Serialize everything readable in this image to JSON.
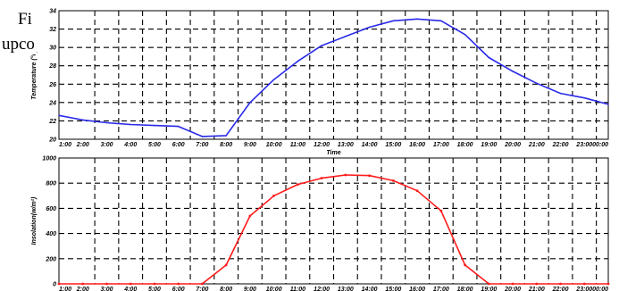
{
  "overlay": {
    "line1": "Fi",
    "line2": "upco"
  },
  "colors": {
    "temperature_line": "#2a2ae8",
    "insolation_line": "#ff1a1a"
  },
  "chart_data": [
    {
      "type": "line",
      "title": "",
      "xlabel": "Time",
      "ylabel": "Temperature (°c)",
      "ylim": [
        20,
        34
      ],
      "yticks": [
        20,
        22,
        24,
        26,
        28,
        30,
        32,
        34
      ],
      "grid": true,
      "categories": [
        "1:00",
        "2:00",
        "3:00",
        "4:00",
        "5:00",
        "6:00",
        "7:00",
        "8:00",
        "9:00",
        "10:00",
        "11:00",
        "12:00",
        "13:00",
        "14:00",
        "15:00",
        "16:00",
        "17:00",
        "18:00",
        "19:00",
        "20:00",
        "21:00",
        "22:00",
        "23:00",
        "00:00"
      ],
      "series": [
        {
          "values": [
            22.6,
            22.1,
            21.8,
            21.6,
            21.5,
            21.4,
            20.3,
            20.4,
            24.0,
            26.5,
            28.5,
            30.2,
            31.2,
            32.2,
            32.9,
            33.1,
            32.9,
            31.4,
            28.9,
            27.4,
            26.1,
            25.0,
            24.5,
            23.8
          ]
        }
      ]
    },
    {
      "type": "line",
      "title": "",
      "xlabel": "",
      "ylabel": "Insolation(w/m²)",
      "ylim": [
        0,
        1000
      ],
      "yticks": [
        0,
        200,
        400,
        600,
        800,
        1000
      ],
      "grid": true,
      "categories": [
        "1:00",
        "2:00",
        "3:00",
        "4:00",
        "5:00",
        "6:00",
        "7:00",
        "8:00",
        "9:00",
        "10:00",
        "11:00",
        "12:00",
        "13:00",
        "14:00",
        "15:00",
        "16:00",
        "17:00",
        "18:00",
        "19:00",
        "20:00",
        "21:00",
        "22:00",
        "23:00",
        "00:00"
      ],
      "series": [
        {
          "values": [
            0,
            0,
            0,
            0,
            0,
            0,
            0,
            150,
            540,
            700,
            790,
            840,
            865,
            860,
            820,
            740,
            580,
            150,
            0,
            0,
            0,
            0,
            0,
            0
          ]
        }
      ]
    }
  ]
}
